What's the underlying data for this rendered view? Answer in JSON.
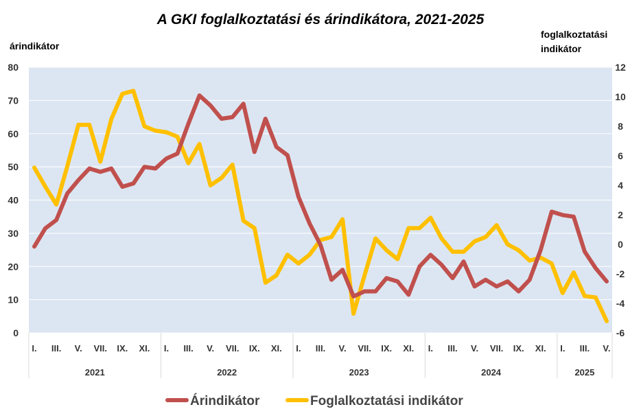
{
  "chart_data": {
    "type": "line",
    "title": "A GKI foglalkoztatási és árindikátora, 2021-2025",
    "y_left": {
      "label": "árindikátor",
      "min": 0,
      "max": 80,
      "ticks": [
        0,
        10,
        20,
        30,
        40,
        50,
        60,
        70,
        80
      ]
    },
    "y_right": {
      "label_lines": [
        "foglalkoztatási",
        "indikátor"
      ],
      "min": -6,
      "max": 12,
      "ticks": [
        -6,
        -4,
        -2,
        0,
        2,
        4,
        6,
        8,
        10,
        12
      ]
    },
    "month_labels": [
      "I.",
      "III.",
      "V.",
      "VII.",
      "IX.",
      "XI.",
      "I.",
      "III.",
      "V.",
      "VII.",
      "IX.",
      "XI.",
      "I.",
      "III.",
      "V.",
      "VII.",
      "IX.",
      "XI.",
      "I.",
      "III.",
      "V.",
      "VII.",
      "IX.",
      "XI.",
      "I.",
      "III.",
      "V."
    ],
    "years": [
      "2021",
      "2022",
      "2023",
      "2024",
      "2025"
    ],
    "grid": true,
    "legend_position": "bottom",
    "series": [
      {
        "name": "Árindikátor",
        "axis": "left",
        "color": "#C0504D",
        "values": [
          26,
          31.5,
          34,
          42,
          46,
          49.5,
          48.5,
          49.5,
          44,
          45,
          50,
          49.5,
          52.5,
          54,
          63,
          71.5,
          68.5,
          64.5,
          65,
          69,
          54.5,
          64.5,
          56,
          53.5,
          41,
          33,
          26.5,
          16,
          19,
          11,
          12.5,
          12.5,
          16.5,
          15.5,
          11.5,
          20,
          23.5,
          20.5,
          16.5,
          21.5,
          14,
          16,
          14,
          15.5,
          12.5,
          16,
          25,
          36.5,
          35.5,
          35,
          24.5,
          19.5,
          15.5
        ]
      },
      {
        "name": "Foglalkoztatási indikátor",
        "axis": "right",
        "color": "#FFC000",
        "values": [
          5.2,
          3.9,
          2.7,
          5.3,
          8.1,
          8.1,
          5.6,
          8.5,
          10.2,
          10.4,
          8,
          7.7,
          7.6,
          7.3,
          5.5,
          6.8,
          4,
          4.5,
          5.4,
          1.6,
          1.1,
          -2.6,
          -2.1,
          -0.7,
          -1.3,
          -0.7,
          0.3,
          0.5,
          1.7,
          -4.7,
          -2.1,
          0.4,
          -0.4,
          -1,
          1.1,
          1.1,
          1.8,
          0.4,
          -0.5,
          -0.5,
          0.2,
          0.5,
          1.3,
          0,
          -0.4,
          -1.1,
          -0.9,
          -1.3,
          -3.3,
          -1.9,
          -3.5,
          -3.6,
          -5.2
        ]
      }
    ]
  }
}
